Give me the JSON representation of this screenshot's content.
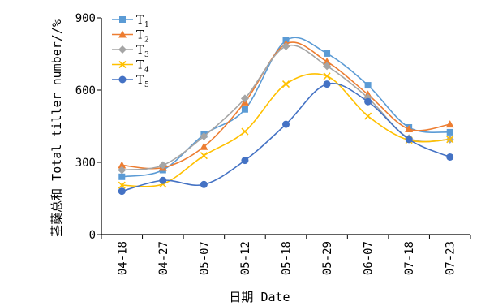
{
  "chart_data": {
    "type": "line",
    "title": "",
    "xlabel": "日期 Date",
    "ylabel": "茎蘖总和 Total tiller number//%",
    "categories": [
      "04-18",
      "04-27",
      "05-07",
      "05-12",
      "05-18",
      "05-29",
      "06-07",
      "07-18",
      "07-23"
    ],
    "yticks": [
      "0",
      "300",
      "600",
      "900"
    ],
    "ylim": [
      0,
      900
    ],
    "grid": false,
    "legend_position": "top-left",
    "series": [
      {
        "name": "T",
        "sub": "1",
        "color": "#5b9bd5",
        "marker": "square",
        "values": [
          240,
          268,
          415,
          520,
          806,
          752,
          620,
          445,
          425
        ]
      },
      {
        "name": "T",
        "sub": "2",
        "color": "#ed7d31",
        "marker": "triangle",
        "values": [
          288,
          278,
          365,
          550,
          792,
          718,
          582,
          438,
          458
        ]
      },
      {
        "name": "T",
        "sub": "3",
        "color": "#a5a5a5",
        "marker": "diamond",
        "values": [
          268,
          288,
          408,
          565,
          782,
          700,
          568,
          400,
          395
        ]
      },
      {
        "name": "T",
        "sub": "4",
        "color": "#ffc000",
        "marker": "cross",
        "values": [
          205,
          210,
          328,
          428,
          625,
          658,
          492,
          392,
          395
        ]
      },
      {
        "name": "T",
        "sub": "5",
        "color": "#4472c4",
        "marker": "circle",
        "values": [
          180,
          225,
          208,
          308,
          458,
          625,
          552,
          395,
          322
        ]
      }
    ]
  }
}
